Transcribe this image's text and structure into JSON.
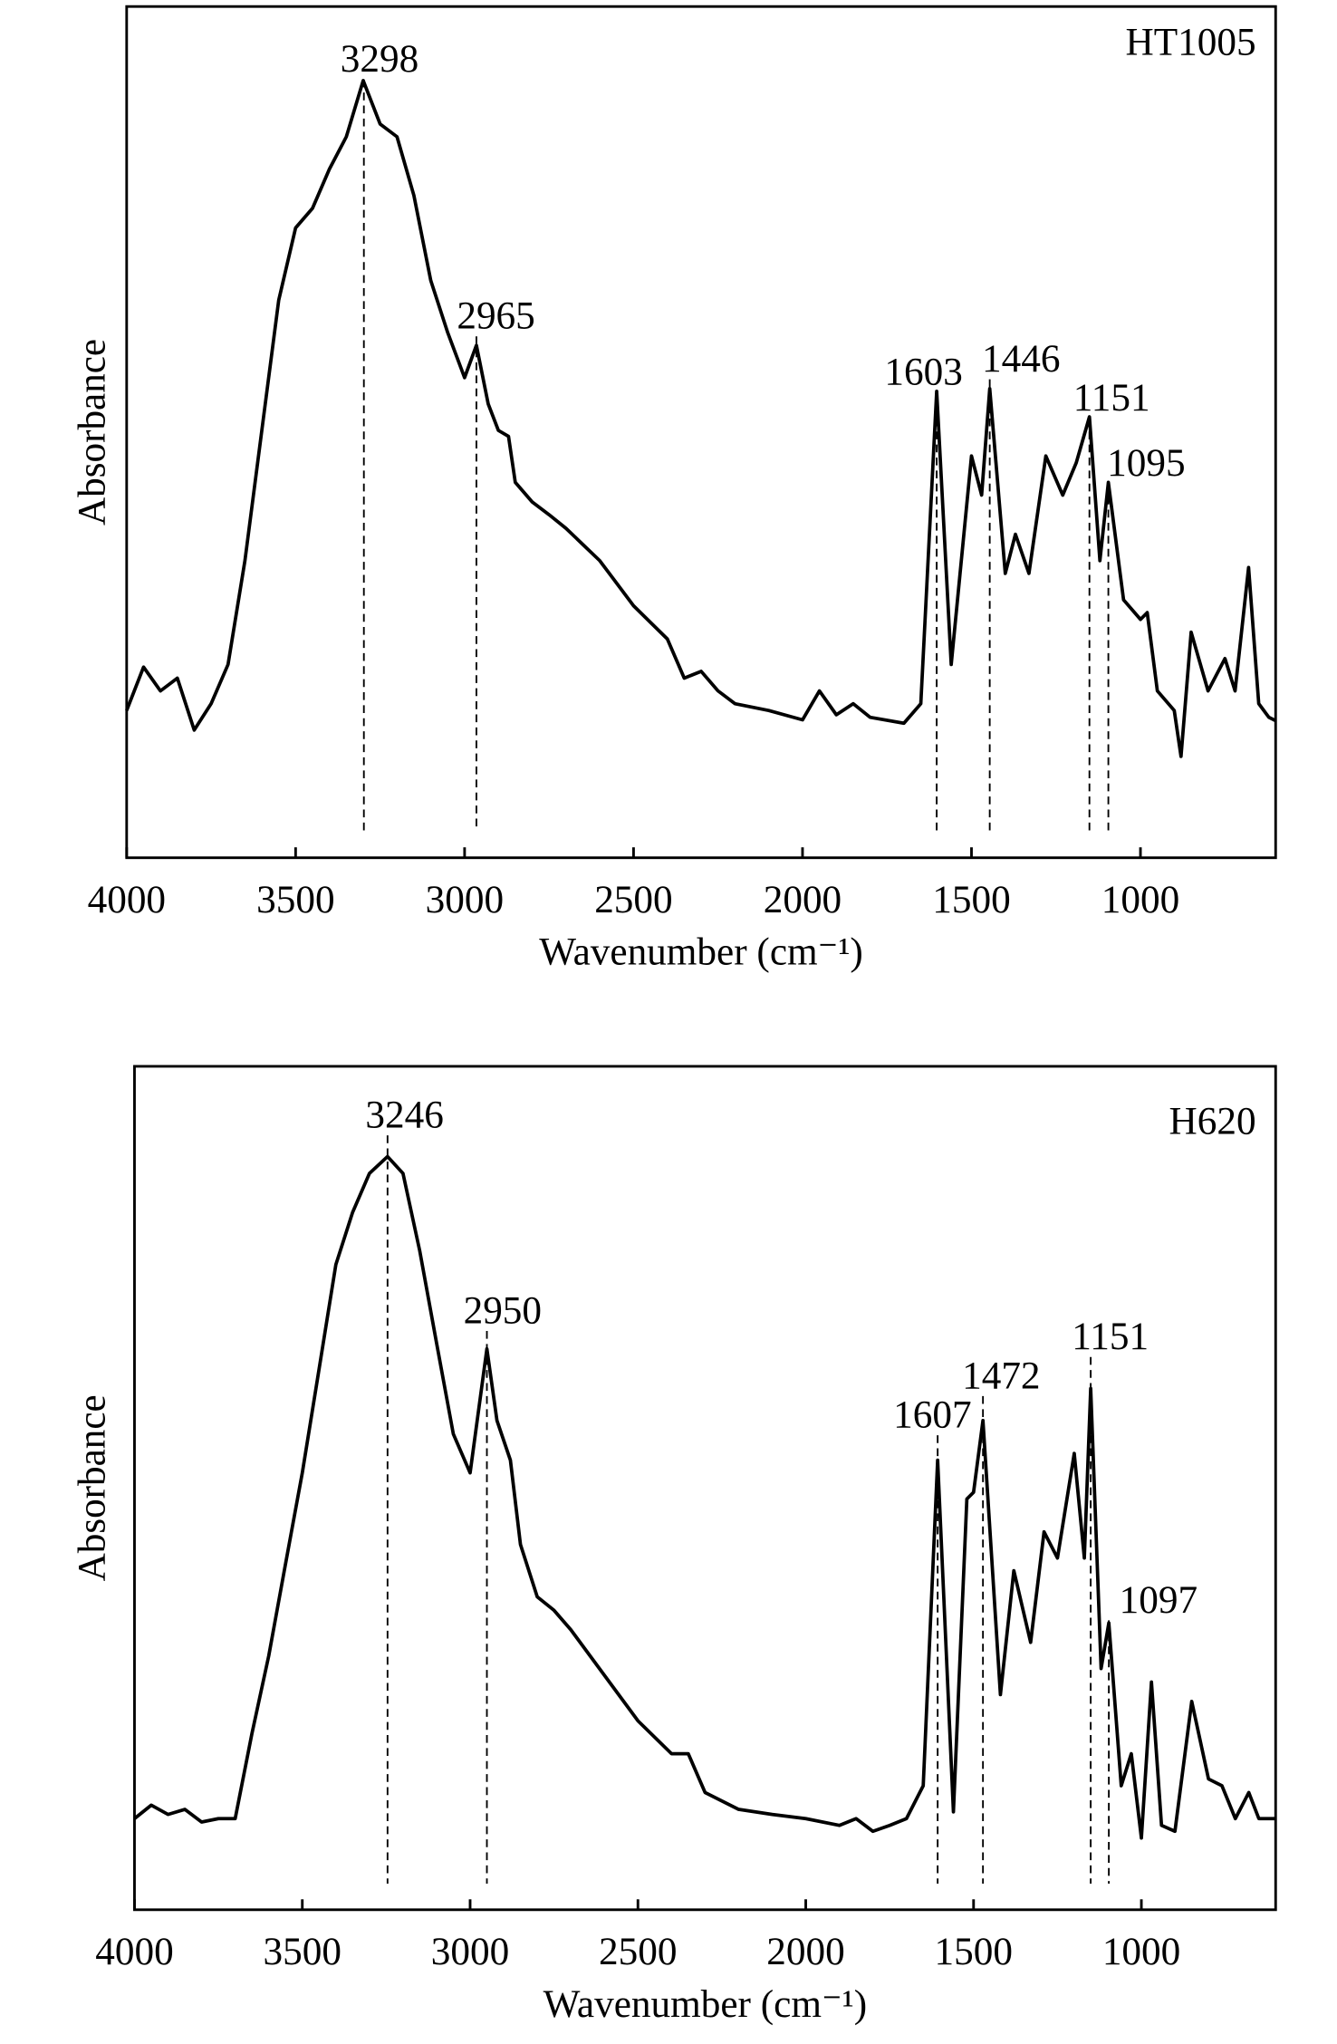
{
  "chart_data": [
    {
      "type": "line",
      "xlabel": "Wavenumber (cm⁻¹)",
      "ylabel": "Absorbance",
      "xlim": [
        4000,
        600
      ],
      "ylim": [
        0,
        1
      ],
      "xticks": [
        4000,
        3500,
        3000,
        2500,
        2000,
        1500,
        1000
      ],
      "x": [
        4000,
        3950,
        3900,
        3850,
        3800,
        3750,
        3700,
        3650,
        3600,
        3550,
        3500,
        3450,
        3400,
        3350,
        3300,
        3250,
        3200,
        3150,
        3100,
        3050,
        3000,
        2965,
        2930,
        2900,
        2870,
        2850,
        2800,
        2750,
        2700,
        2650,
        2600,
        2500,
        2400,
        2350,
        2300,
        2250,
        2200,
        2100,
        2000,
        1950,
        1900,
        1850,
        1800,
        1700,
        1650,
        1603,
        1560,
        1500,
        1470,
        1446,
        1400,
        1370,
        1330,
        1280,
        1230,
        1190,
        1151,
        1120,
        1095,
        1050,
        1000,
        980,
        950,
        900,
        880,
        850,
        800,
        750,
        720,
        680,
        650,
        620,
        600
      ],
      "series": [
        {
          "name": "HT1005",
          "color": "#000000",
          "values": [
            0.173,
            0.224,
            0.196,
            0.211,
            0.15,
            0.181,
            0.227,
            0.349,
            0.502,
            0.655,
            0.74,
            0.763,
            0.809,
            0.847,
            0.913,
            0.862,
            0.847,
            0.778,
            0.678,
            0.617,
            0.564,
            0.602,
            0.533,
            0.502,
            0.495,
            0.441,
            0.418,
            0.403,
            0.387,
            0.368,
            0.349,
            0.296,
            0.257,
            0.211,
            0.219,
            0.196,
            0.181,
            0.173,
            0.162,
            0.196,
            0.168,
            0.181,
            0.165,
            0.158,
            0.181,
            0.548,
            0.227,
            0.472,
            0.426,
            0.551,
            0.334,
            0.38,
            0.334,
            0.472,
            0.426,
            0.464,
            0.518,
            0.349,
            0.441,
            0.303,
            0.28,
            0.288,
            0.196,
            0.173,
            0.119,
            0.265,
            0.196,
            0.234,
            0.196,
            0.341,
            0.181,
            0.165,
            0.161
          ]
        }
      ],
      "peak_labels": [
        3298,
        2965,
        1603,
        1446,
        1151,
        1095
      ]
    },
    {
      "type": "line",
      "xlabel": "Wavenumber (cm⁻¹)",
      "ylabel": "Absorbance",
      "xlim": [
        4000,
        600
      ],
      "ylim": [
        0,
        1
      ],
      "xticks": [
        4000,
        3500,
        3000,
        2500,
        2000,
        1500,
        1000
      ],
      "x": [
        4000,
        3950,
        3900,
        3850,
        3800,
        3750,
        3700,
        3650,
        3600,
        3550,
        3500,
        3450,
        3400,
        3350,
        3300,
        3246,
        3200,
        3150,
        3100,
        3050,
        3000,
        2950,
        2920,
        2880,
        2850,
        2800,
        2750,
        2700,
        2600,
        2500,
        2400,
        2350,
        2300,
        2200,
        2100,
        2000,
        1900,
        1850,
        1800,
        1750,
        1700,
        1650,
        1607,
        1560,
        1520,
        1500,
        1472,
        1420,
        1380,
        1330,
        1290,
        1250,
        1200,
        1170,
        1151,
        1120,
        1097,
        1060,
        1030,
        1000,
        970,
        940,
        900,
        850,
        800,
        760,
        720,
        680,
        650,
        600
      ],
      "series": [
        {
          "name": "H620",
          "color": "#000000",
          "values": [
            0.108,
            0.124,
            0.113,
            0.119,
            0.104,
            0.108,
            0.108,
            0.209,
            0.301,
            0.41,
            0.518,
            0.641,
            0.765,
            0.827,
            0.873,
            0.893,
            0.873,
            0.781,
            0.672,
            0.564,
            0.518,
            0.665,
            0.58,
            0.533,
            0.433,
            0.371,
            0.355,
            0.332,
            0.278,
            0.224,
            0.185,
            0.185,
            0.139,
            0.119,
            0.113,
            0.108,
            0.1,
            0.108,
            0.093,
            0.1,
            0.108,
            0.147,
            0.533,
            0.116,
            0.487,
            0.495,
            0.58,
            0.255,
            0.402,
            0.317,
            0.448,
            0.417,
            0.541,
            0.417,
            0.618,
            0.286,
            0.34,
            0.147,
            0.185,
            0.085,
            0.27,
            0.1,
            0.093,
            0.247,
            0.155,
            0.147,
            0.108,
            0.139,
            0.108,
            0.108
          ]
        }
      ],
      "peak_labels": [
        3246,
        2950,
        1607,
        1472,
        1151,
        1097
      ]
    }
  ]
}
